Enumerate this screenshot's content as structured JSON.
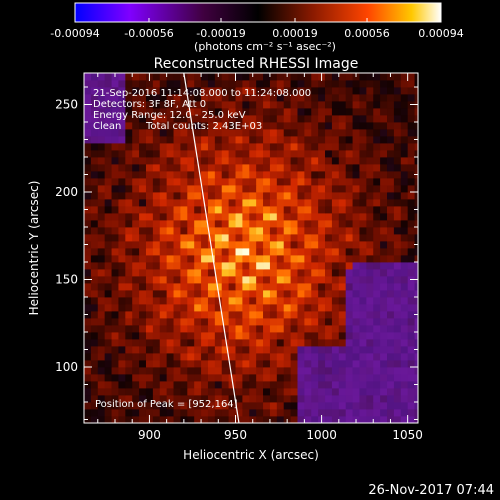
{
  "chart_data": {
    "type": "heatmap",
    "title": "Reconstructed RHESSI Image",
    "xlabel": "Heliocentric X (arcsec)",
    "ylabel": "Heliocentric Y (arcsec)",
    "xlim": [
      862,
      1056
    ],
    "ylim": [
      68,
      268
    ],
    "x_ticks": [
      900,
      950,
      1000,
      1050
    ],
    "y_ticks": [
      100,
      150,
      200,
      250
    ],
    "colorbar": {
      "range": [
        -0.00094,
        0.00094
      ],
      "ticks": [
        "-0.00094",
        "-0.00056",
        "-0.00019",
        "0.00019",
        "0.00056",
        "0.00094"
      ],
      "label": "(photons cm⁻² s⁻¹ asec⁻²)",
      "colors": [
        "#0000ff",
        "#8000ff",
        "#400040",
        "#000000",
        "#8b1a00",
        "#ff4500",
        "#ffc800",
        "#ffffff"
      ]
    },
    "annotations": [
      "21-Sep-2016 11:14:08.000 to 11:24:08.000",
      "Detectors: 3F 8F, Att 0",
      "Energy Range: 12.0 - 25.0 keV",
      "Clean",
      "Total counts: 2.43E+03",
      "Position of Peak = [952,164]"
    ],
    "peak": {
      "x": 952,
      "y": 164
    },
    "limb_line": [
      [
        920,
        268
      ],
      [
        952,
        68
      ]
    ]
  },
  "footer": {
    "timestamp": "26-Nov-2017 07:44"
  }
}
